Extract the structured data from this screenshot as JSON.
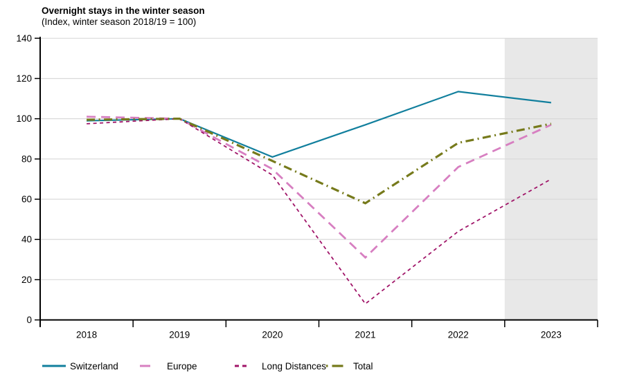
{
  "header": {
    "title": "Overnight stays in the winter season",
    "subtitle": "(Index, winter season 2018/19 = 100)"
  },
  "chart_data": {
    "type": "line",
    "title": "Overnight stays in the winter season",
    "subtitle": "(Index, winter season 2018/19 = 100)",
    "categories": [
      "2018",
      "2019",
      "2020",
      "2021",
      "2022",
      "2023"
    ],
    "series": [
      {
        "name": "Switzerland",
        "color": "#117f9d",
        "dash": "solid",
        "width": 2.2,
        "values": [
          99,
          100,
          81,
          97,
          113.5,
          108
        ]
      },
      {
        "name": "Europe",
        "color": "#d77fc1",
        "dash": "long-dash",
        "width": 2.8,
        "values": [
          101,
          100,
          75,
          31,
          76,
          97
        ]
      },
      {
        "name": "Long Distances",
        "color": "#a01468",
        "dash": "short-dash",
        "width": 1.8,
        "values": [
          97.5,
          100,
          72,
          8,
          44,
          70
        ]
      },
      {
        "name": "Total",
        "color": "#767a1b",
        "dash": "dash-dot",
        "width": 3.2,
        "values": [
          99.5,
          100,
          79,
          58,
          88,
          97.5
        ]
      }
    ],
    "xlabel": "",
    "ylabel": "",
    "ylim": [
      0,
      140
    ],
    "yticks": [
      0,
      20,
      40,
      60,
      80,
      100,
      120,
      140
    ],
    "grid": true,
    "legend_position": "bottom",
    "legend_labels": [
      "Switzerland",
      "Europe",
      "Long Distances",
      "Total"
    ],
    "forecast_band": {
      "from_category": "2023",
      "from_category_index": 5,
      "color": "#e8e8e8"
    }
  },
  "colors": {
    "background": "#ffffff",
    "axis": "#000000",
    "gridline": "#d9d9d9",
    "forecast_band": "#e8e8e8",
    "text": "#000000"
  }
}
